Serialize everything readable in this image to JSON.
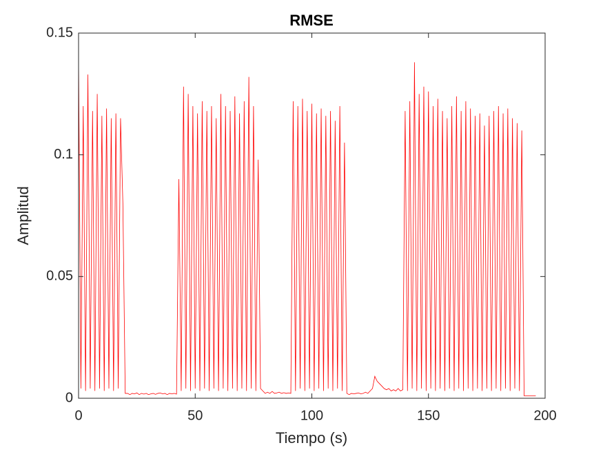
{
  "chart_data": {
    "type": "line",
    "title": "RMSE",
    "x_label": "Tiempo (s)",
    "y_label": "Amplitud",
    "x": [
      0,
      1,
      2,
      3,
      4,
      5,
      6,
      7,
      8,
      9,
      10,
      11,
      12,
      13,
      14,
      15,
      16,
      17,
      18,
      19,
      20,
      21,
      22,
      23,
      24,
      25,
      26,
      27,
      28,
      29,
      30,
      31,
      32,
      33,
      34,
      35,
      36,
      37,
      38,
      39,
      40,
      41,
      42,
      43,
      44,
      45,
      46,
      47,
      48,
      49,
      50,
      51,
      52,
      53,
      54,
      55,
      56,
      57,
      58,
      59,
      60,
      61,
      62,
      63,
      64,
      65,
      66,
      67,
      68,
      69,
      70,
      71,
      72,
      73,
      74,
      75,
      76,
      77,
      78,
      79,
      80,
      81,
      82,
      83,
      84,
      85,
      86,
      87,
      88,
      89,
      90,
      91,
      92,
      93,
      94,
      95,
      96,
      97,
      98,
      99,
      100,
      101,
      102,
      103,
      104,
      105,
      106,
      107,
      108,
      109,
      110,
      111,
      112,
      113,
      114,
      115,
      116,
      117,
      118,
      119,
      120,
      121,
      122,
      123,
      124,
      125,
      126,
      127,
      128,
      129,
      130,
      131,
      132,
      133,
      134,
      135,
      136,
      137,
      138,
      139,
      140,
      141,
      142,
      143,
      144,
      145,
      146,
      147,
      148,
      149,
      150,
      151,
      152,
      153,
      154,
      155,
      156,
      157,
      158,
      159,
      160,
      161,
      162,
      163,
      164,
      165,
      166,
      167,
      168,
      169,
      170,
      171,
      172,
      173,
      174,
      175,
      176,
      177,
      178,
      179,
      180,
      181,
      182,
      183,
      184,
      185,
      186,
      187,
      188,
      189,
      190,
      191,
      192,
      193,
      194,
      195,
      196
    ],
    "series": [
      {
        "color": "#ff0000",
        "values": [
          0.14,
          0.004,
          0.12,
          0.003,
          0.133,
          0.004,
          0.118,
          0.003,
          0.125,
          0.004,
          0.116,
          0.003,
          0.119,
          0.004,
          0.115,
          0.003,
          0.117,
          0.004,
          0.115,
          0.08,
          0.002,
          0.002,
          0.0015,
          0.002,
          0.0018,
          0.0022,
          0.0015,
          0.002,
          0.0017,
          0.002,
          0.0015,
          0.0018,
          0.002,
          0.0016,
          0.002,
          0.0022,
          0.0018,
          0.002,
          0.0015,
          0.002,
          0.0018,
          0.002,
          0.0017,
          0.09,
          0.003,
          0.128,
          0.004,
          0.125,
          0.003,
          0.12,
          0.004,
          0.117,
          0.003,
          0.122,
          0.004,
          0.118,
          0.003,
          0.12,
          0.004,
          0.115,
          0.003,
          0.125,
          0.004,
          0.12,
          0.003,
          0.118,
          0.004,
          0.124,
          0.003,
          0.117,
          0.004,
          0.122,
          0.003,
          0.132,
          0.004,
          0.12,
          0.003,
          0.098,
          0.004,
          0.003,
          0.002,
          0.0025,
          0.002,
          0.0028,
          0.002,
          0.0022,
          0.0025,
          0.002,
          0.0023,
          0.002,
          0.0022,
          0.002,
          0.122,
          0.003,
          0.12,
          0.004,
          0.123,
          0.003,
          0.118,
          0.004,
          0.121,
          0.003,
          0.117,
          0.004,
          0.119,
          0.003,
          0.116,
          0.004,
          0.118,
          0.003,
          0.114,
          0.004,
          0.12,
          0.003,
          0.105,
          0.002,
          0.0015,
          0.002,
          0.0018,
          0.002,
          0.0022,
          0.0018,
          0.002,
          0.0025,
          0.002,
          0.003,
          0.004,
          0.009,
          0.007,
          0.006,
          0.005,
          0.004,
          0.0035,
          0.004,
          0.003,
          0.0035,
          0.003,
          0.004,
          0.003,
          0.0035,
          0.118,
          0.003,
          0.122,
          0.004,
          0.138,
          0.003,
          0.125,
          0.004,
          0.128,
          0.003,
          0.126,
          0.004,
          0.12,
          0.003,
          0.123,
          0.004,
          0.118,
          0.003,
          0.115,
          0.004,
          0.12,
          0.003,
          0.124,
          0.004,
          0.118,
          0.003,
          0.122,
          0.004,
          0.119,
          0.003,
          0.116,
          0.004,
          0.117,
          0.003,
          0.112,
          0.004,
          0.116,
          0.003,
          0.118,
          0.004,
          0.12,
          0.003,
          0.117,
          0.004,
          0.119,
          0.003,
          0.115,
          0.004,
          0.113,
          0.003,
          0.11,
          0.001,
          0.001,
          0.001,
          0.001,
          0.001,
          0.001
        ]
      }
    ],
    "xlim": [
      0,
      200
    ],
    "ylim": [
      0,
      0.15
    ],
    "xticks": [
      0,
      50,
      100,
      150,
      200
    ],
    "yticks": [
      0,
      0.05,
      0.1,
      0.15
    ]
  }
}
